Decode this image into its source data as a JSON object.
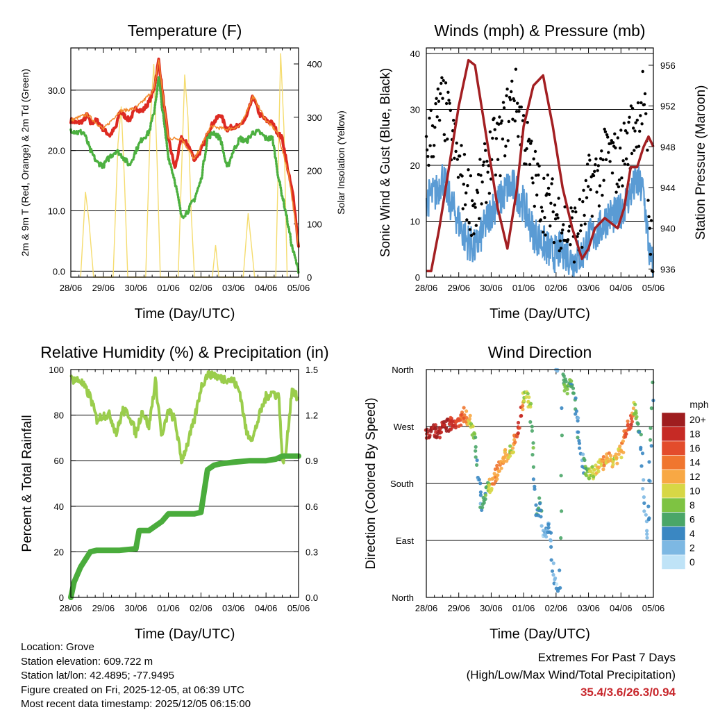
{
  "colors": {
    "t2m": "#dd2a22",
    "t9m": "#f28a2e",
    "td": "#4cb040",
    "solar": "#f5dc6e",
    "gust": "#000000",
    "wind": "#5a9bd4",
    "pressure": "#a31f22",
    "rh": "#9acd4c",
    "precip": "#4aac3c",
    "extremes_text": "#c8282d"
  },
  "info": {
    "location": "Location: Grove",
    "elevation": "Station elevation: 609.722 m",
    "latlon": "Station lat/lon: 42.4895; -77.9495",
    "created": "Figure created on Fri, 2025-12-05, at 06:39 UTC",
    "recent": "Most recent data timestamp: 2025/12/05 06:15:00"
  },
  "extremes": {
    "title": "Extremes For Past 7 Days",
    "subtitle": "(High/Low/Max Wind/Total Precipitation)",
    "values": "35.4/3.6/26.3/0.94"
  },
  "chart_data": [
    {
      "type": "line",
      "title": "Temperature (F)",
      "xlabel": "Time (Day/UTC)",
      "ylabel": "2m & 9m T (Red, Orange) & 2m Td (Green)",
      "y2label": "Solar Insolation (Yellow)",
      "x_ticks": [
        "28/06",
        "29/06",
        "30/06",
        "01/06",
        "02/06",
        "03/06",
        "04/06",
        "05/06"
      ],
      "xlim": [
        0,
        7
      ],
      "ylim": [
        -1,
        37
      ],
      "y_ticks": [
        "0.0",
        "10.0",
        "20.0",
        "30.0"
      ],
      "y2lim": [
        0,
        430
      ],
      "y2_ticks": [
        "0",
        "100",
        "200",
        "300",
        "400"
      ],
      "grid": true,
      "series": [
        {
          "name": "2m T",
          "color": "#dd2a22",
          "style": "thick",
          "x": [
            0,
            0.2,
            0.4,
            0.5,
            0.6,
            0.8,
            1.0,
            1.2,
            1.4,
            1.5,
            1.6,
            1.8,
            2.0,
            2.2,
            2.4,
            2.55,
            2.7,
            2.9,
            3.0,
            3.2,
            3.4,
            3.6,
            3.8,
            4.0,
            4.3,
            4.6,
            4.8,
            5.0,
            5.2,
            5.4,
            5.6,
            5.8,
            6.0,
            6.2,
            6.35,
            6.5,
            6.7,
            6.85,
            7.0
          ],
          "values": [
            25,
            24.5,
            25,
            26,
            24.5,
            25,
            23.5,
            22.5,
            24,
            26.5,
            26,
            25,
            27,
            26.5,
            28,
            30,
            35,
            26,
            22,
            17,
            22,
            21,
            18.5,
            20,
            24,
            26,
            23.5,
            24,
            24,
            25.5,
            29,
            26,
            25,
            24.5,
            23,
            22,
            16,
            12,
            4
          ]
        },
        {
          "name": "9m T",
          "color": "#f28a2e",
          "style": "thin",
          "x": [
            0,
            0.5,
            1.0,
            1.5,
            2.0,
            2.55,
            2.7,
            3.0,
            3.4,
            3.8,
            4.3,
            4.8,
            5.2,
            5.6,
            6.0,
            6.35,
            6.7,
            7.0
          ],
          "values": [
            25,
            26,
            23.5,
            26.5,
            27,
            30,
            35,
            22,
            22,
            18.5,
            24,
            23.5,
            24,
            29,
            25,
            23,
            16,
            4
          ]
        },
        {
          "name": "2m Td",
          "color": "#4cb040",
          "style": "dotted",
          "x": [
            0,
            0.2,
            0.4,
            0.6,
            0.8,
            1.0,
            1.2,
            1.4,
            1.6,
            1.8,
            2.0,
            2.2,
            2.4,
            2.55,
            2.7,
            2.9,
            3.0,
            3.2,
            3.4,
            3.6,
            3.8,
            4.0,
            4.2,
            4.4,
            4.6,
            4.8,
            5.0,
            5.2,
            5.4,
            5.6,
            5.8,
            6.0,
            6.2,
            6.4,
            6.6,
            6.8,
            7.0
          ],
          "values": [
            23.5,
            23,
            23,
            20,
            18,
            17.5,
            19,
            20,
            19,
            17.5,
            20,
            22,
            23,
            26,
            32,
            23,
            19,
            15,
            9,
            10,
            12,
            15,
            22,
            23,
            22,
            17,
            20,
            22,
            21.5,
            23,
            23,
            22,
            22,
            15,
            10,
            4,
            0
          ]
        },
        {
          "name": "Solar Insolation",
          "color": "#f5dc6e",
          "axis": "y2",
          "style": "thin",
          "x": [
            0.3,
            0.45,
            0.55,
            0.7,
            1.3,
            1.45,
            1.55,
            1.65,
            1.75,
            2.3,
            2.45,
            2.55,
            2.65,
            2.75,
            3.3,
            3.5,
            3.6,
            3.7,
            3.8,
            4.35,
            4.45,
            4.55,
            5.3,
            5.45,
            5.55,
            5.65,
            6.3,
            6.45,
            6.55,
            6.65
          ],
          "values": [
            0,
            160,
            110,
            0,
            0,
            250,
            320,
            180,
            0,
            0,
            300,
            400,
            220,
            0,
            0,
            380,
            300,
            120,
            0,
            0,
            60,
            0,
            0,
            120,
            60,
            0,
            0,
            420,
            280,
            0
          ]
        }
      ]
    },
    {
      "type": "scatter",
      "title": "Winds (mph) & Pressure (mb)",
      "xlabel": "Time (Day/UTC)",
      "ylabel": "Sonic Wind & Gust (Blue, Black)",
      "y2label": "Station Pressure (Maroon)",
      "x_ticks": [
        "28/06",
        "29/06",
        "30/06",
        "01/06",
        "02/06",
        "03/06",
        "04/06",
        "05/06"
      ],
      "xlim": [
        0,
        7
      ],
      "ylim": [
        0,
        41
      ],
      "y_ticks": [
        "0",
        "10",
        "20",
        "30",
        "40"
      ],
      "y2lim": [
        935.2,
        957.7
      ],
      "y2_ticks": [
        "936",
        "940",
        "944",
        "948",
        "952",
        "956"
      ],
      "grid": true,
      "series": [
        {
          "name": "Gust",
          "color": "#000000",
          "x": [
            0,
            0.3,
            0.5,
            0.7,
            1.0,
            1.2,
            1.5,
            1.8,
            2.0,
            2.3,
            2.5,
            2.7,
            3.0,
            3.3,
            3.6,
            3.9,
            4.2,
            4.5,
            4.8,
            5.0,
            5.3,
            5.6,
            5.9,
            6.2,
            6.5,
            6.7,
            6.9,
            7.0
          ],
          "values": [
            23,
            28,
            31,
            27,
            20,
            16,
            12,
            18,
            22,
            24,
            29,
            33,
            26,
            18,
            14,
            12,
            10,
            8,
            9,
            16,
            18,
            22,
            20,
            24,
            28,
            33,
            8,
            5
          ]
        },
        {
          "name": "Sonic Wind",
          "color": "#5a9bd4",
          "x": [
            0,
            0.3,
            0.5,
            0.7,
            1.0,
            1.2,
            1.5,
            1.8,
            2.0,
            2.3,
            2.5,
            2.7,
            3.0,
            3.3,
            3.6,
            3.9,
            4.2,
            4.5,
            4.8,
            5.0,
            5.3,
            5.6,
            5.9,
            6.2,
            6.5,
            6.7,
            6.9,
            7.0
          ],
          "values": [
            14,
            15,
            18,
            14,
            10,
            7,
            5,
            9,
            12,
            14,
            16,
            16,
            13,
            8,
            6,
            4,
            5,
            3,
            4,
            7,
            8,
            11,
            11,
            14,
            17,
            15,
            3,
            2
          ]
        },
        {
          "name": "Station Pressure",
          "color": "#a31f22",
          "axis": "y2",
          "x": [
            0,
            0.15,
            0.4,
            0.7,
            1.0,
            1.3,
            1.5,
            1.8,
            2.2,
            2.5,
            2.8,
            3.0,
            3.3,
            3.6,
            3.9,
            4.2,
            4.5,
            4.8,
            5.0,
            5.2,
            5.5,
            5.7,
            5.9,
            6.1,
            6.3,
            6.5,
            6.7,
            6.85,
            7.0
          ],
          "values": [
            935.8,
            935.8,
            940,
            946,
            952,
            956.5,
            956,
            950,
            942,
            938,
            944,
            950,
            954,
            955,
            950,
            944,
            940,
            937,
            938,
            940,
            941,
            940.5,
            940,
            942,
            946,
            946,
            948,
            949,
            948
          ]
        }
      ]
    },
    {
      "type": "line",
      "title": "Relative Humidity (%) & Precipitation (in)",
      "xlabel": "Time (Day/UTC)",
      "ylabel": "Percent & Total Rainfall",
      "x_ticks": [
        "28/06",
        "29/06",
        "30/06",
        "01/06",
        "02/06",
        "03/06",
        "04/06",
        "05/06"
      ],
      "xlim": [
        0,
        7
      ],
      "ylim": [
        0,
        100
      ],
      "y_ticks": [
        "0",
        "20",
        "40",
        "60",
        "80",
        "100"
      ],
      "y2lim": [
        0,
        1.5
      ],
      "y2_ticks": [
        "0.0",
        "0.3",
        "0.6",
        "0.9",
        "1.2",
        "1.5"
      ],
      "grid": true,
      "series": [
        {
          "name": "RH",
          "color": "#9acd4c",
          "x": [
            0,
            0.3,
            0.6,
            0.8,
            1.0,
            1.2,
            1.4,
            1.6,
            1.8,
            2.0,
            2.2,
            2.4,
            2.6,
            2.8,
            3.0,
            3.2,
            3.4,
            3.6,
            3.8,
            4.0,
            4.2,
            4.4,
            4.6,
            4.8,
            5.0,
            5.2,
            5.4,
            5.6,
            5.8,
            6.0,
            6.2,
            6.4,
            6.5,
            6.6,
            6.8,
            7.0
          ],
          "values": [
            96,
            95,
            88,
            78,
            80,
            80,
            72,
            82,
            80,
            72,
            82,
            75,
            95,
            70,
            82,
            78,
            60,
            68,
            78,
            92,
            98,
            98,
            96,
            96,
            95,
            90,
            72,
            70,
            80,
            88,
            90,
            88,
            60,
            62,
            92,
            86
          ]
        },
        {
          "name": "Total Precipitation",
          "color": "#4aac3c",
          "axis": "y2",
          "x": [
            0,
            0.1,
            0.3,
            0.6,
            0.8,
            1.0,
            1.5,
            2.0,
            2.1,
            2.4,
            2.8,
            3.0,
            3.4,
            3.8,
            4.0,
            4.1,
            4.2,
            4.4,
            4.6,
            5.0,
            5.5,
            6.0,
            6.3,
            6.5,
            7.0
          ],
          "values": [
            0,
            0.1,
            0.2,
            0.3,
            0.31,
            0.31,
            0.31,
            0.32,
            0.44,
            0.44,
            0.5,
            0.55,
            0.55,
            0.55,
            0.56,
            0.7,
            0.84,
            0.87,
            0.88,
            0.89,
            0.9,
            0.9,
            0.91,
            0.93,
            0.93
          ]
        }
      ]
    },
    {
      "type": "scatter",
      "title": "Wind Direction",
      "xlabel": "Time (Day/UTC)",
      "ylabel": "Direction (Colored By Speed)",
      "x_ticks": [
        "28/06",
        "29/06",
        "30/06",
        "01/06",
        "02/06",
        "03/06",
        "04/06",
        "05/06"
      ],
      "xlim": [
        0,
        7
      ],
      "ylim": [
        0,
        360
      ],
      "y_ticks": [
        "North",
        "East",
        "South",
        "West",
        "North"
      ],
      "colorbar": {
        "title": "mph",
        "labels": [
          "20+",
          "18",
          "16",
          "14",
          "12",
          "10",
          "8",
          "6",
          "4",
          "2",
          "0"
        ],
        "colors": [
          "#9f1d1f",
          "#c62a25",
          "#e34c2c",
          "#f0762f",
          "#f8a844",
          "#d7d745",
          "#7ec342",
          "#4aa668",
          "#3a87c2",
          "#7db8e3",
          "#bfe3f7"
        ]
      },
      "grid": true,
      "series": [
        {
          "name": "Direction",
          "x": [
            0,
            0.2,
            0.4,
            0.6,
            0.8,
            1.0,
            1.2,
            1.4,
            1.5,
            1.6,
            1.7,
            1.8,
            1.9,
            2.0,
            2.2,
            2.4,
            2.6,
            2.8,
            2.9,
            3.0,
            3.2,
            3.4,
            3.5,
            3.6,
            3.8,
            4.0,
            4.1,
            4.2,
            4.3,
            4.5,
            4.6,
            4.8,
            4.9,
            5.0,
            5.2,
            5.4,
            5.6,
            5.8,
            6.0,
            6.2,
            6.3,
            6.4,
            6.6,
            6.8,
            7.0
          ],
          "values": [
            255,
            265,
            260,
            270,
            275,
            280,
            290,
            275,
            250,
            190,
            140,
            160,
            170,
            180,
            200,
            220,
            230,
            260,
            280,
            320,
            310,
            130,
            150,
            100,
            110,
            10,
            5,
            350,
            330,
            340,
            300,
            220,
            200,
            190,
            200,
            210,
            220,
            215,
            230,
            270,
            280,
            300,
            260,
            80,
            350
          ],
          "speeds": [
            18,
            20,
            18,
            20,
            18,
            16,
            14,
            10,
            6,
            4,
            4,
            6,
            8,
            12,
            14,
            12,
            10,
            16,
            18,
            10,
            8,
            4,
            6,
            2,
            4,
            2,
            4,
            6,
            8,
            6,
            4,
            4,
            6,
            8,
            10,
            12,
            12,
            10,
            12,
            16,
            18,
            10,
            4,
            2,
            6
          ]
        }
      ]
    }
  ]
}
